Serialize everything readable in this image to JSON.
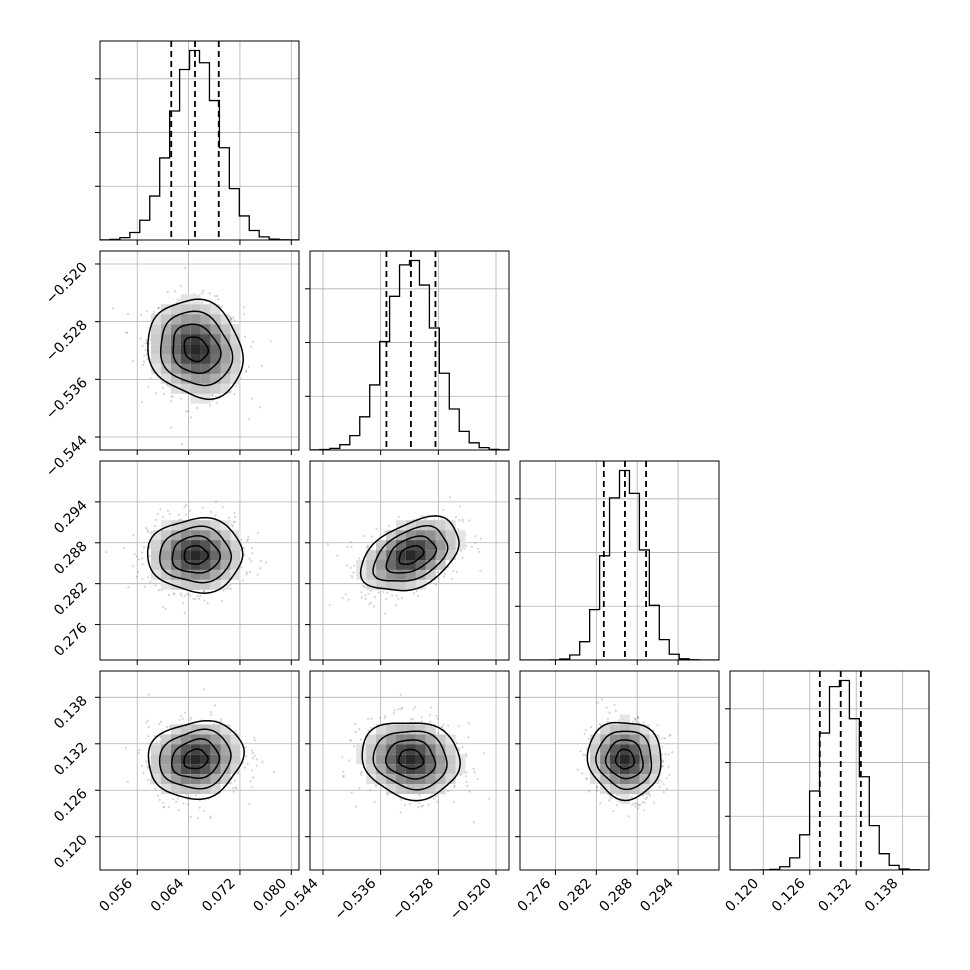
{
  "chart_data": {
    "type": "corner",
    "grid": true,
    "parameters": [
      {
        "ticks": [
          "0.056",
          "0.064",
          "0.072",
          "0.080"
        ],
        "tick_values": [
          0.056,
          0.064,
          0.072,
          0.08
        ],
        "range": [
          0.0502,
          0.0812
        ],
        "mean": 0.0651,
        "std": 0.0037,
        "quantiles": [
          0.0613,
          0.065,
          0.0687
        ]
      },
      {
        "ticks": [
          "−0.544",
          "−0.536",
          "−0.528",
          "−0.520"
        ],
        "tick_values": [
          -0.544,
          -0.536,
          -0.528,
          -0.52
        ],
        "range": [
          -0.5458,
          -0.5182
        ],
        "mean": -0.5318,
        "std": 0.0034,
        "quantiles": [
          -0.5352,
          -0.5318,
          -0.5284
        ]
      },
      {
        "ticks": [
          "0.276",
          "0.282",
          "0.288",
          "0.294"
        ],
        "tick_values": [
          0.276,
          0.282,
          0.288,
          0.294
        ],
        "range": [
          0.2708,
          0.3
        ],
        "mean": 0.2862,
        "std": 0.0027,
        "quantiles": [
          0.2831,
          0.2862,
          0.2893
        ]
      },
      {
        "ticks": [
          "0.120",
          "0.126",
          "0.132",
          "0.138"
        ],
        "tick_values": [
          0.12,
          0.126,
          0.132,
          0.138
        ],
        "range": [
          0.1157,
          0.1414
        ],
        "mean": 0.13,
        "std": 0.0025,
        "quantiles": [
          0.1273,
          0.13,
          0.1326
        ]
      }
    ],
    "correlations": [
      [
        1.0,
        -0.15,
        0.0,
        0.1
      ],
      [
        -0.15,
        1.0,
        0.4,
        -0.1
      ],
      [
        0.0,
        0.4,
        1.0,
        -0.05
      ],
      [
        0.1,
        -0.1,
        -0.05,
        1.0
      ]
    ],
    "contour_levels_sigma": [
      0.5,
      1.0,
      1.5,
      2.0
    ],
    "histogram_bins": 20
  }
}
